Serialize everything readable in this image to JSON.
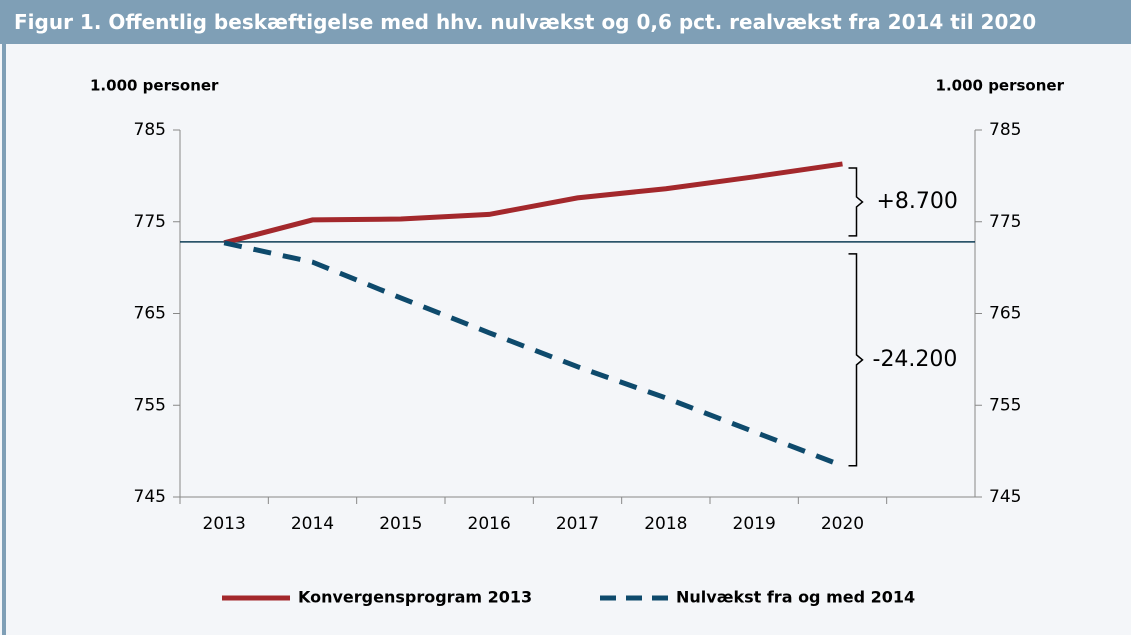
{
  "chart_data": {
    "type": "line",
    "title": "Figur 1. Offentlig beskæftigelse med hhv. nulvækst og 0,6 pct. realvækst fra 2014 til 2020",
    "ylabel": "1.000 personer",
    "y2label": "1.000 personer",
    "categories": [
      "2013",
      "2014",
      "2015",
      "2016",
      "2017",
      "2018",
      "2019",
      "2020",
      null
    ],
    "series": [
      {
        "name": "Konvergensprogram 2013",
        "color": "#a3282c",
        "dash": false,
        "values": [
          772.7,
          775.2,
          775.3,
          775.8,
          777.6,
          778.6,
          779.9,
          781.3,
          null
        ]
      },
      {
        "name": "Nulvækst fra og med 2014",
        "color": "#0e4a6c",
        "dash": true,
        "values": [
          772.7,
          770.6,
          766.7,
          762.9,
          759.2,
          755.8,
          752.1,
          748.4,
          null
        ]
      }
    ],
    "reference_line": 772.8,
    "annotations": [
      "+8.700",
      "-24.200"
    ],
    "ylim": [
      745,
      785
    ],
    "yticks": [
      745,
      755,
      765,
      775,
      785
    ],
    "y2lim": [
      745,
      785
    ],
    "y2ticks": [
      745,
      755,
      765,
      775,
      785
    ],
    "legend": "bottom"
  }
}
